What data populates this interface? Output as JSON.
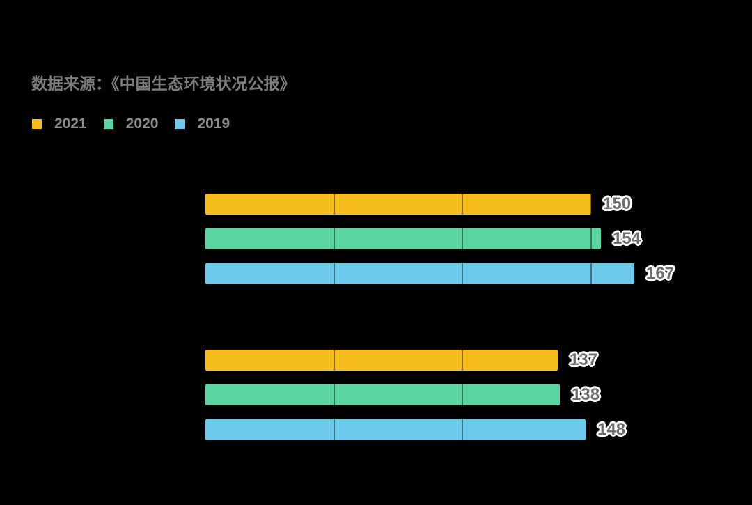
{
  "background_color": "#000000",
  "source_note": "数据来源：《中国生态环境状况公报》",
  "colors": {
    "background": "#000000",
    "source_note_text": "#7B7B7B",
    "legend_text": "#8C8C8C",
    "value_label_text": "#6E6E6E",
    "value_label_halo": "#FFFFFF",
    "gridline": "rgba(0,0,0,0.42)"
  },
  "chart_data": {
    "type": "bar",
    "orientation": "horizontal",
    "title": "",
    "xlabel": "",
    "ylabel": "",
    "categories": [
      "",
      ""
    ],
    "series": [
      {
        "name": "2021",
        "color": "#F5BD1E",
        "values": [
          150,
          137
        ]
      },
      {
        "name": "2020",
        "color": "#5AD5A2",
        "values": [
          154,
          138
        ]
      },
      {
        "name": "2019",
        "color": "#6CC9EC",
        "values": [
          167,
          148
        ]
      }
    ],
    "xlim": [
      0,
      180
    ],
    "gridlines": {
      "show": true,
      "values": [
        50,
        100,
        150
      ]
    },
    "legend_position": "top-left",
    "value_labels_shown": true
  }
}
